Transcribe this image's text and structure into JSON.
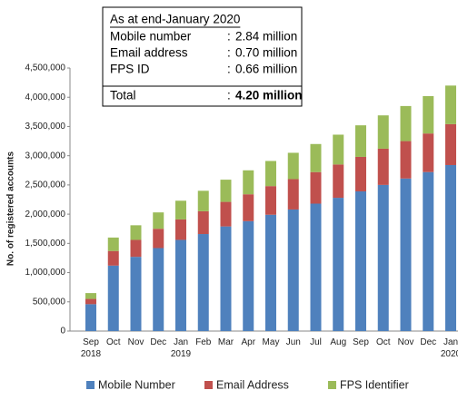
{
  "chart_data": {
    "type": "stacked_bar",
    "y_axis_label": "No. of registered accounts",
    "categories": [
      "Sep 2018",
      "Oct",
      "Nov",
      "Dec",
      "Jan 2019",
      "Feb",
      "Mar",
      "Apr",
      "May",
      "Jun",
      "Jul",
      "Aug",
      "Sep",
      "Oct",
      "Nov",
      "Dec",
      "Jan 2020"
    ],
    "series": [
      {
        "name": "Mobile Number",
        "color": "#4f81bd",
        "values": [
          460000,
          1120000,
          1270000,
          1420000,
          1560000,
          1660000,
          1790000,
          1880000,
          1990000,
          2080000,
          2180000,
          2280000,
          2390000,
          2500000,
          2610000,
          2720000,
          2840000
        ]
      },
      {
        "name": "Email Address",
        "color": "#c0504d",
        "values": [
          90000,
          250000,
          290000,
          330000,
          350000,
          390000,
          420000,
          460000,
          490000,
          520000,
          540000,
          570000,
          590000,
          620000,
          640000,
          660000,
          700000
        ]
      },
      {
        "name": "FPS Identifier",
        "color": "#9bbb59",
        "values": [
          100000,
          230000,
          250000,
          280000,
          320000,
          350000,
          380000,
          410000,
          430000,
          450000,
          480000,
          510000,
          540000,
          570000,
          600000,
          640000,
          660000
        ]
      }
    ],
    "ylim": [
      0,
      4500000
    ],
    "yticks": [
      0,
      {
        "value": 500000,
        "label": "500,000"
      },
      {
        "value": 1000000,
        "label": "1,000,000"
      },
      {
        "value": 1500000,
        "label": "1,500,000"
      },
      {
        "value": 2000000,
        "label": "2,000,000"
      },
      {
        "value": 2500000,
        "label": "2,500,000"
      },
      {
        "value": 3000000,
        "label": "3,000,000"
      },
      {
        "value": 3500000,
        "label": "3,500,000"
      },
      {
        "value": 4000000,
        "label": "4,000,000"
      },
      {
        "value": 4500000,
        "label": "4,500,000"
      }
    ],
    "legend": "bottom",
    "annotation_box": {
      "title": "As at end-January 2020",
      "rows": [
        [
          "Mobile number",
          ":",
          "2.84 million"
        ],
        [
          "Email address",
          ":",
          "0.70 million"
        ],
        [
          "FPS ID",
          ":",
          "0.66 million"
        ]
      ],
      "total": [
        "Total",
        ":",
        "4.20 million"
      ]
    }
  }
}
